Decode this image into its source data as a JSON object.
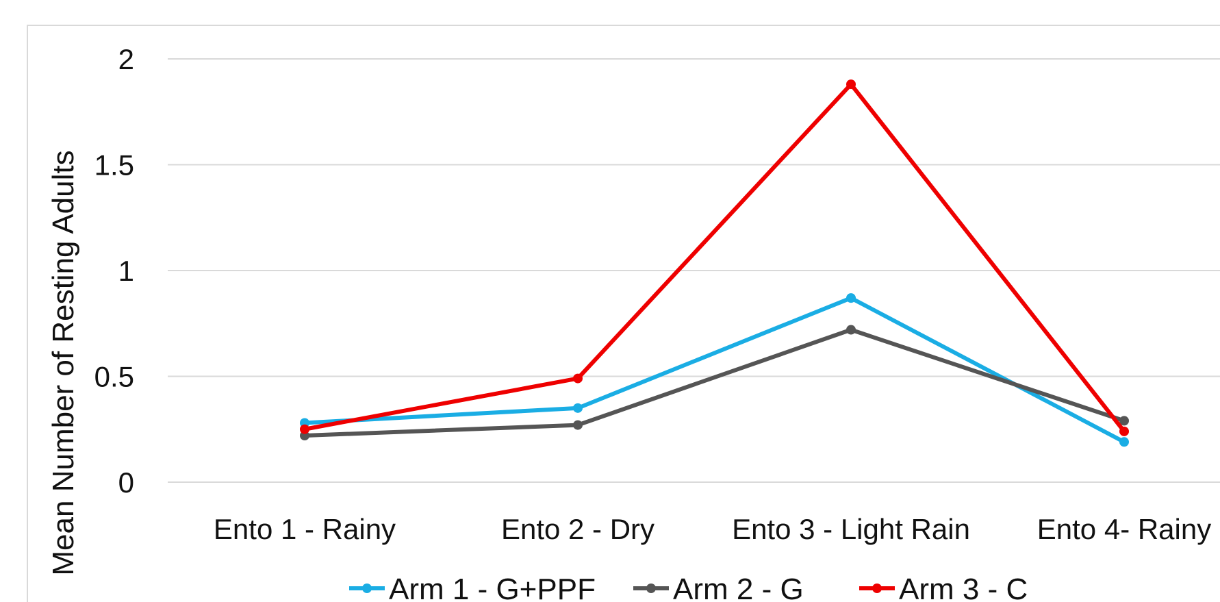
{
  "chart_data": {
    "type": "line",
    "title": "",
    "xlabel": "",
    "ylabel": "Mean Number of Resting Adults",
    "categories": [
      "Ento 1 - Rainy",
      "Ento 2 - Dry",
      "Ento 3 - Light Rain",
      "Ento 4- Rainy"
    ],
    "ylim": [
      0,
      2
    ],
    "yticks": [
      "0",
      "0.5",
      "1",
      "1.5",
      "2"
    ],
    "ytick_values": [
      0,
      0.5,
      1,
      1.5,
      2
    ],
    "grid": true,
    "legend_position": "bottom",
    "series": [
      {
        "name": "Arm 1 - G+PPF",
        "color": "#1AADE4",
        "values": [
          0.28,
          0.35,
          0.87,
          0.19
        ]
      },
      {
        "name": "Arm 2 - G",
        "color": "#555555",
        "values": [
          0.22,
          0.27,
          0.72,
          0.29
        ]
      },
      {
        "name": "Arm 3 - C",
        "color": "#EE0000",
        "values": [
          0.25,
          0.49,
          1.88,
          0.24
        ]
      }
    ]
  }
}
